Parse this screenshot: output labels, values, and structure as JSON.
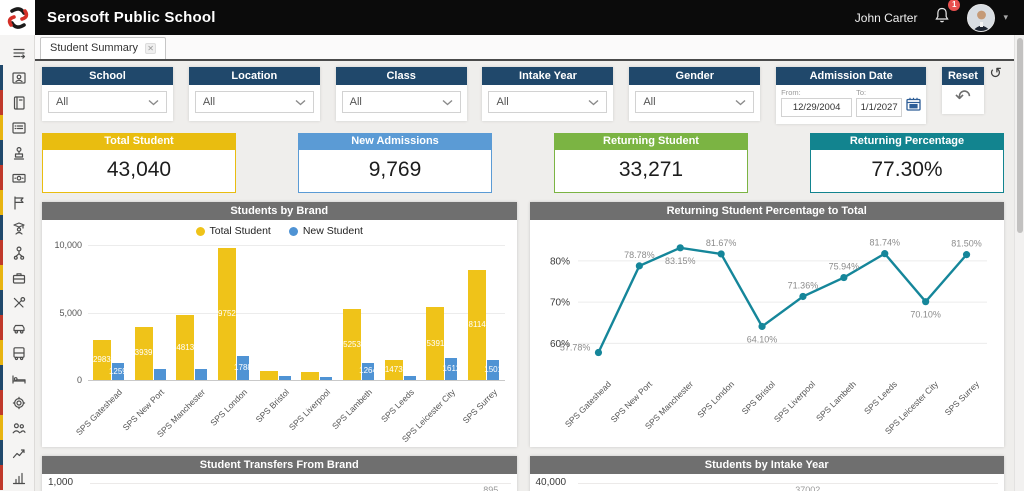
{
  "header": {
    "title": "Serosoft Public School",
    "user": "John Carter",
    "notification_count": "1"
  },
  "tab": {
    "label": "Student Summary"
  },
  "glyphs": {
    "refresh": "↺",
    "undo": "↶",
    "close": "✕"
  },
  "sidebar": {
    "items": [
      "menu-icon",
      "id-card-icon",
      "book-icon",
      "checklist-icon",
      "podium-person-icon",
      "money-icon",
      "flag-icon",
      "graduate-icon",
      "org-chart-icon",
      "briefcase-icon",
      "tools-icon",
      "car-icon",
      "bus-icon",
      "bed-icon",
      "gear-icon",
      "users-icon",
      "trend-chart-icon",
      "bar-chart-icon"
    ],
    "strip_colors": [
      "#20486b",
      "#c0392b",
      "#e8b411"
    ]
  },
  "filters": {
    "items": [
      {
        "label": "School",
        "value": "All"
      },
      {
        "label": "Location",
        "value": "All"
      },
      {
        "label": "Class",
        "value": "All"
      },
      {
        "label": "Intake Year",
        "value": "All"
      },
      {
        "label": "Gender",
        "value": "All"
      }
    ],
    "admission": {
      "label": "Admission Date",
      "from_label": "From:",
      "from_value": "12/29/2004",
      "to_label": "To:",
      "to_value": "1/1/2027"
    },
    "reset_label": "Reset"
  },
  "kpis": [
    {
      "label": "Total Student",
      "value": "43,040",
      "color": "#e9bd10"
    },
    {
      "label": "New Admissions",
      "value": "9,769",
      "color": "#5b9bd5"
    },
    {
      "label": "Returning Student",
      "value": "33,271",
      "color": "#7bb443"
    },
    {
      "label": "Returning Percentage",
      "value": "77.30%",
      "color": "#12848f"
    }
  ],
  "chart_data": [
    {
      "type": "bar",
      "title": "Students by Brand",
      "categories": [
        "SPS Gateshead",
        "SPS New Port",
        "SPS Manchester",
        "SPS London",
        "SPS Bristol",
        "SPS Liverpool",
        "SPS Lambeth",
        "SPS Leeds",
        "SPS Leicester City",
        "SPS Surrey"
      ],
      "series": [
        {
          "name": "Total Student",
          "color": "#efc319",
          "values": [
            2983,
            3939,
            4813,
            9752,
            700,
            600,
            5253,
            1473,
            5391,
            8114
          ],
          "labels": [
            "2983",
            "3939",
            "4813",
            "9752",
            "",
            "",
            "5253",
            "1473",
            "5391",
            "8114"
          ]
        },
        {
          "name": "New Student",
          "color": "#4f93d4",
          "values": [
            1259,
            840,
            830,
            1788,
            290,
            190,
            1264,
            270,
            1612,
            1501
          ],
          "labels": [
            "1259",
            "",
            "",
            "1788",
            "",
            "",
            "1264",
            "",
            "1612",
            "1501"
          ]
        }
      ],
      "ylim": [
        0,
        10000
      ],
      "yticks": [
        {
          "value": 10000,
          "label": "10,000"
        },
        {
          "value": 5000,
          "label": "5,000"
        },
        {
          "value": 0,
          "label": "0"
        }
      ],
      "grid": true,
      "legend_position": "top"
    },
    {
      "type": "line",
      "title": "Returning Student Percentage to Total",
      "categories": [
        "SPS Gateshead",
        "SPS New Port",
        "SPS Manchester",
        "SPS London",
        "SPS Bristol",
        "SPS Liverpool",
        "SPS Lambeth",
        "SPS Leeds",
        "SPS Leicester City",
        "SPS Surrey"
      ],
      "values": [
        57.78,
        78.78,
        83.15,
        81.67,
        64.1,
        71.36,
        75.94,
        81.74,
        70.1,
        81.5
      ],
      "labels": [
        "57.78%",
        "78.78%",
        "83.15%",
        "81.67%",
        "64.10%",
        "71.36%",
        "75.94%",
        "81.74%",
        "70.10%",
        "81.50%"
      ],
      "label_positions": [
        "left",
        "above",
        "below",
        "above",
        "below",
        "above",
        "above",
        "above",
        "below",
        "above"
      ],
      "color": "#15869a",
      "ylim": [
        55,
        86.5
      ],
      "yticks": [
        {
          "value": 80,
          "label": "80%"
        },
        {
          "value": 70,
          "label": "70%"
        },
        {
          "value": 60,
          "label": "60%"
        }
      ],
      "grid": true
    },
    {
      "type": "bar",
      "title": "Student Transfers From Brand",
      "partial": true,
      "yticks": [
        {
          "value": 1000,
          "label": "1,000"
        }
      ],
      "visible_value_label": "895",
      "bar_color": "#17181a"
    },
    {
      "type": "bar",
      "title": "Students by Intake Year",
      "partial": true,
      "yticks": [
        {
          "value": 40000,
          "label": "40,000"
        }
      ],
      "visible_value_label": "37002",
      "bar_color": "#0e3e48"
    }
  ]
}
